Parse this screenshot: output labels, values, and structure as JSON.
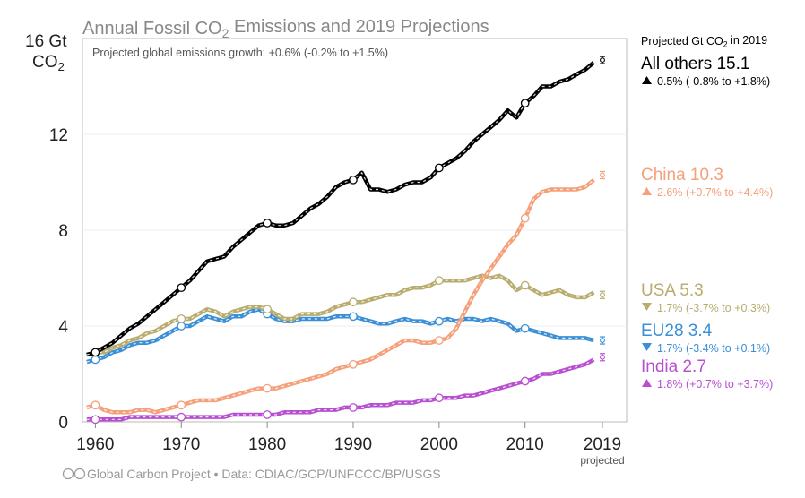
{
  "chart_data": {
    "type": "line",
    "title": "Annual Fossil CO2 Emissions and 2019 Projections",
    "subtitle": "Projected global emissions growth: +0.6% (-0.2% to +1.5%)",
    "ylabel_top": "16 Gt",
    "ylabel_unit": "CO2",
    "ylim": [
      0,
      16
    ],
    "xlim": [
      1959,
      2019
    ],
    "y_ticks": [
      "0",
      "4",
      "8",
      "12"
    ],
    "x_ticks": [
      "1960",
      "1970",
      "1980",
      "1990",
      "2000",
      "2010",
      "2019"
    ],
    "x_tick_values": [
      1960,
      1970,
      1980,
      1990,
      2000,
      2010,
      2019
    ],
    "x_projected_label": "projected",
    "legend_header": "Projected Gt CO2 in 2019",
    "footer": "Global Carbon Project  •  Data: CDIAC/GCP/UNFCCC/BP/USGS",
    "x": [
      1959,
      1960,
      1961,
      1962,
      1963,
      1964,
      1965,
      1966,
      1967,
      1968,
      1969,
      1970,
      1971,
      1972,
      1973,
      1974,
      1975,
      1976,
      1977,
      1978,
      1979,
      1980,
      1981,
      1982,
      1983,
      1984,
      1985,
      1986,
      1987,
      1988,
      1989,
      1990,
      1991,
      1992,
      1993,
      1994,
      1995,
      1996,
      1997,
      1998,
      1999,
      2000,
      2001,
      2002,
      2003,
      2004,
      2005,
      2006,
      2007,
      2008,
      2009,
      2010,
      2011,
      2012,
      2013,
      2014,
      2015,
      2016,
      2017,
      2018
    ],
    "series": [
      {
        "name": "All others",
        "value_label": "15.1",
        "rate": "0.5% (-0.8% to +1.8%)",
        "direction": "up",
        "color": "#000000",
        "projection": 15.1,
        "values": [
          2.8,
          2.9,
          3.1,
          3.3,
          3.6,
          3.9,
          4.1,
          4.4,
          4.7,
          5.0,
          5.3,
          5.6,
          5.9,
          6.3,
          6.7,
          6.8,
          6.9,
          7.3,
          7.6,
          7.9,
          8.2,
          8.3,
          8.2,
          8.2,
          8.3,
          8.6,
          8.9,
          9.1,
          9.4,
          9.8,
          10.0,
          10.1,
          10.4,
          9.7,
          9.7,
          9.6,
          9.7,
          9.9,
          10.0,
          10.0,
          10.2,
          10.6,
          10.8,
          11.0,
          11.3,
          11.7,
          12.0,
          12.3,
          12.6,
          13.0,
          12.7,
          13.3,
          13.6,
          14.0,
          14.0,
          14.2,
          14.3,
          14.5,
          14.7,
          15.0
        ]
      },
      {
        "name": "China",
        "value_label": "10.3",
        "rate": "2.6% (+0.7% to +4.4%)",
        "direction": "up",
        "color": "#f4a07a",
        "projection": 10.3,
        "values": [
          0.6,
          0.7,
          0.5,
          0.4,
          0.4,
          0.4,
          0.5,
          0.5,
          0.4,
          0.5,
          0.6,
          0.7,
          0.8,
          0.9,
          0.9,
          0.9,
          1.0,
          1.1,
          1.2,
          1.3,
          1.4,
          1.4,
          1.4,
          1.5,
          1.6,
          1.7,
          1.8,
          1.9,
          2.0,
          2.2,
          2.3,
          2.4,
          2.5,
          2.6,
          2.8,
          3.0,
          3.2,
          3.4,
          3.4,
          3.3,
          3.3,
          3.4,
          3.5,
          3.9,
          4.6,
          5.3,
          5.9,
          6.4,
          6.9,
          7.4,
          7.8,
          8.5,
          9.3,
          9.6,
          9.7,
          9.7,
          9.7,
          9.7,
          9.8,
          10.1
        ]
      },
      {
        "name": "USA",
        "value_label": "5.3",
        "rate": "1.7% (-3.7% to +0.3%)",
        "direction": "down",
        "color": "#b8ac6e",
        "projection": 5.3,
        "values": [
          2.8,
          2.9,
          2.9,
          3.1,
          3.2,
          3.4,
          3.5,
          3.7,
          3.8,
          4.0,
          4.2,
          4.3,
          4.3,
          4.5,
          4.7,
          4.6,
          4.4,
          4.6,
          4.7,
          4.8,
          4.8,
          4.7,
          4.5,
          4.3,
          4.3,
          4.5,
          4.5,
          4.5,
          4.6,
          4.8,
          4.9,
          5.0,
          5.0,
          5.1,
          5.2,
          5.3,
          5.3,
          5.5,
          5.6,
          5.6,
          5.7,
          5.9,
          5.9,
          5.9,
          5.9,
          6.0,
          6.1,
          6.0,
          6.1,
          5.9,
          5.5,
          5.7,
          5.5,
          5.3,
          5.4,
          5.5,
          5.3,
          5.2,
          5.2,
          5.4
        ]
      },
      {
        "name": "EU28",
        "value_label": "3.4",
        "rate": "1.7% (-3.4% to +0.1%)",
        "direction": "down",
        "color": "#3b8fd6",
        "projection": 3.4,
        "values": [
          2.5,
          2.6,
          2.7,
          2.9,
          3.0,
          3.2,
          3.3,
          3.3,
          3.4,
          3.6,
          3.8,
          4.0,
          4.0,
          4.2,
          4.4,
          4.3,
          4.2,
          4.4,
          4.4,
          4.6,
          4.7,
          4.5,
          4.3,
          4.2,
          4.2,
          4.3,
          4.3,
          4.3,
          4.3,
          4.4,
          4.4,
          4.4,
          4.3,
          4.2,
          4.1,
          4.1,
          4.2,
          4.3,
          4.2,
          4.2,
          4.1,
          4.2,
          4.3,
          4.2,
          4.3,
          4.3,
          4.2,
          4.3,
          4.2,
          4.1,
          3.8,
          3.9,
          3.8,
          3.7,
          3.6,
          3.5,
          3.5,
          3.5,
          3.5,
          3.4
        ]
      },
      {
        "name": "India",
        "value_label": "2.7",
        "rate": "1.8% (+0.7% to +3.7%)",
        "direction": "up",
        "color": "#b84fd0",
        "projection": 2.7,
        "values": [
          0.1,
          0.1,
          0.1,
          0.1,
          0.1,
          0.2,
          0.2,
          0.2,
          0.2,
          0.2,
          0.2,
          0.2,
          0.2,
          0.2,
          0.2,
          0.2,
          0.2,
          0.3,
          0.3,
          0.3,
          0.3,
          0.3,
          0.3,
          0.4,
          0.4,
          0.4,
          0.4,
          0.5,
          0.5,
          0.5,
          0.6,
          0.6,
          0.6,
          0.7,
          0.7,
          0.7,
          0.8,
          0.8,
          0.8,
          0.9,
          0.9,
          1.0,
          1.0,
          1.0,
          1.1,
          1.1,
          1.2,
          1.3,
          1.4,
          1.5,
          1.6,
          1.7,
          1.8,
          2.0,
          2.0,
          2.1,
          2.2,
          2.3,
          2.4,
          2.6
        ]
      }
    ]
  }
}
